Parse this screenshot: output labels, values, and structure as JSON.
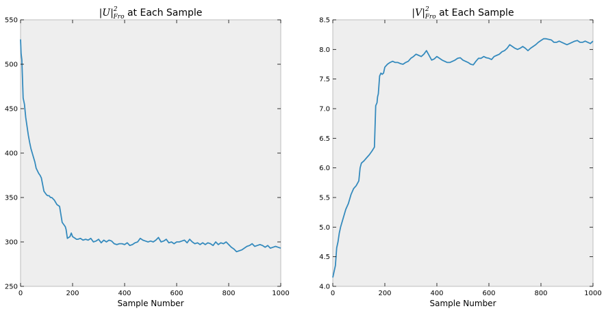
{
  "chart_data": [
    {
      "type": "line",
      "title": {
        "math_base": "|U|",
        "math_sup": "2",
        "math_sub": "Fro",
        "text": " at Each Sample"
      },
      "xlabel": "Sample Number",
      "ylabel": "",
      "xlim": [
        0,
        1000
      ],
      "ylim": [
        250,
        550
      ],
      "xticks": [
        0,
        200,
        400,
        600,
        800,
        1000
      ],
      "yticks": [
        250,
        300,
        350,
        400,
        450,
        500,
        550
      ],
      "grid": false,
      "color": "#348abd",
      "x": [
        0,
        2,
        5,
        10,
        15,
        20,
        25,
        30,
        35,
        40,
        45,
        50,
        55,
        60,
        65,
        70,
        75,
        80,
        90,
        100,
        105,
        110,
        115,
        120,
        130,
        140,
        150,
        160,
        165,
        170,
        172,
        175,
        180,
        185,
        190,
        195,
        200,
        205,
        210,
        215,
        220,
        230,
        240,
        250,
        260,
        270,
        280,
        290,
        300,
        310,
        320,
        330,
        340,
        350,
        360,
        370,
        380,
        390,
        400,
        410,
        420,
        430,
        440,
        450,
        460,
        470,
        480,
        490,
        500,
        510,
        520,
        530,
        540,
        550,
        560,
        570,
        580,
        590,
        600,
        610,
        620,
        630,
        640,
        650,
        660,
        670,
        680,
        690,
        700,
        710,
        720,
        730,
        740,
        750,
        760,
        770,
        780,
        790,
        800,
        810,
        820,
        830,
        840,
        850,
        860,
        870,
        880,
        890,
        900,
        910,
        920,
        930,
        940,
        950,
        960,
        970,
        980,
        990,
        1000
      ],
      "y": [
        528,
        512,
        505,
        462,
        455,
        440,
        430,
        420,
        412,
        405,
        400,
        395,
        390,
        383,
        380,
        377,
        375,
        372,
        357,
        353,
        352,
        352,
        350,
        350,
        347,
        342,
        340,
        322,
        320,
        318,
        317,
        314,
        304,
        305,
        306,
        310,
        306,
        305,
        304,
        303,
        303,
        304,
        302,
        303,
        302,
        304,
        300,
        301,
        303,
        299,
        302,
        300,
        302,
        301,
        298,
        297,
        298,
        298,
        297,
        299,
        296,
        297,
        299,
        300,
        304,
        302,
        301,
        300,
        301,
        300,
        302,
        305,
        300,
        301,
        303,
        299,
        300,
        298,
        300,
        300,
        301,
        302,
        299,
        303,
        300,
        298,
        299,
        297,
        299,
        297,
        299,
        298,
        296,
        300,
        297,
        299,
        298,
        300,
        297,
        294,
        292,
        289,
        290,
        291,
        293,
        295,
        296,
        298,
        295,
        296,
        297,
        296,
        294,
        296,
        293,
        294,
        295,
        294,
        293
      ]
    },
    {
      "type": "line",
      "title": {
        "math_base": "|V|",
        "math_sup": "2",
        "math_sub": "Fro",
        "text": " at Each Sample"
      },
      "xlabel": "Sample Number",
      "ylabel": "",
      "xlim": [
        0,
        1000
      ],
      "ylim": [
        4.0,
        8.5
      ],
      "xticks": [
        0,
        200,
        400,
        600,
        800,
        1000
      ],
      "yticks": [
        4.0,
        4.5,
        5.0,
        5.5,
        6.0,
        6.5,
        7.0,
        7.5,
        8.0,
        8.5
      ],
      "grid": false,
      "color": "#348abd",
      "x": [
        0,
        5,
        10,
        15,
        20,
        25,
        30,
        40,
        50,
        60,
        70,
        80,
        90,
        100,
        105,
        110,
        120,
        130,
        140,
        150,
        160,
        165,
        170,
        172,
        175,
        180,
        185,
        190,
        195,
        200,
        210,
        220,
        230,
        240,
        250,
        260,
        270,
        280,
        290,
        300,
        310,
        320,
        330,
        340,
        350,
        360,
        370,
        380,
        390,
        400,
        410,
        420,
        430,
        440,
        450,
        460,
        470,
        480,
        490,
        500,
        510,
        520,
        530,
        540,
        550,
        560,
        570,
        580,
        590,
        600,
        610,
        620,
        630,
        640,
        650,
        660,
        670,
        680,
        690,
        700,
        710,
        720,
        730,
        740,
        750,
        760,
        770,
        780,
        790,
        800,
        810,
        820,
        830,
        840,
        850,
        860,
        870,
        880,
        890,
        900,
        910,
        920,
        930,
        940,
        950,
        960,
        970,
        980,
        990,
        1000
      ],
      "y": [
        4.15,
        4.25,
        4.35,
        4.65,
        4.75,
        4.9,
        5.0,
        5.15,
        5.3,
        5.4,
        5.55,
        5.65,
        5.7,
        5.78,
        6.0,
        6.08,
        6.12,
        6.17,
        6.22,
        6.28,
        6.35,
        7.05,
        7.1,
        7.2,
        7.25,
        7.55,
        7.6,
        7.58,
        7.6,
        7.7,
        7.75,
        7.78,
        7.8,
        7.78,
        7.78,
        7.76,
        7.75,
        7.78,
        7.8,
        7.85,
        7.88,
        7.92,
        7.9,
        7.88,
        7.92,
        7.98,
        7.9,
        7.82,
        7.84,
        7.88,
        7.85,
        7.82,
        7.8,
        7.78,
        7.78,
        7.8,
        7.82,
        7.85,
        7.86,
        7.82,
        7.8,
        7.78,
        7.75,
        7.74,
        7.8,
        7.85,
        7.85,
        7.88,
        7.86,
        7.85,
        7.83,
        7.88,
        7.9,
        7.92,
        7.96,
        7.98,
        8.02,
        8.08,
        8.05,
        8.02,
        8.0,
        8.02,
        8.05,
        8.02,
        7.98,
        8.02,
        8.05,
        8.08,
        8.12,
        8.15,
        8.18,
        8.18,
        8.17,
        8.16,
        8.12,
        8.12,
        8.14,
        8.12,
        8.1,
        8.08,
        8.1,
        8.12,
        8.14,
        8.15,
        8.12,
        8.12,
        8.14,
        8.12,
        8.1,
        8.14
      ]
    }
  ]
}
